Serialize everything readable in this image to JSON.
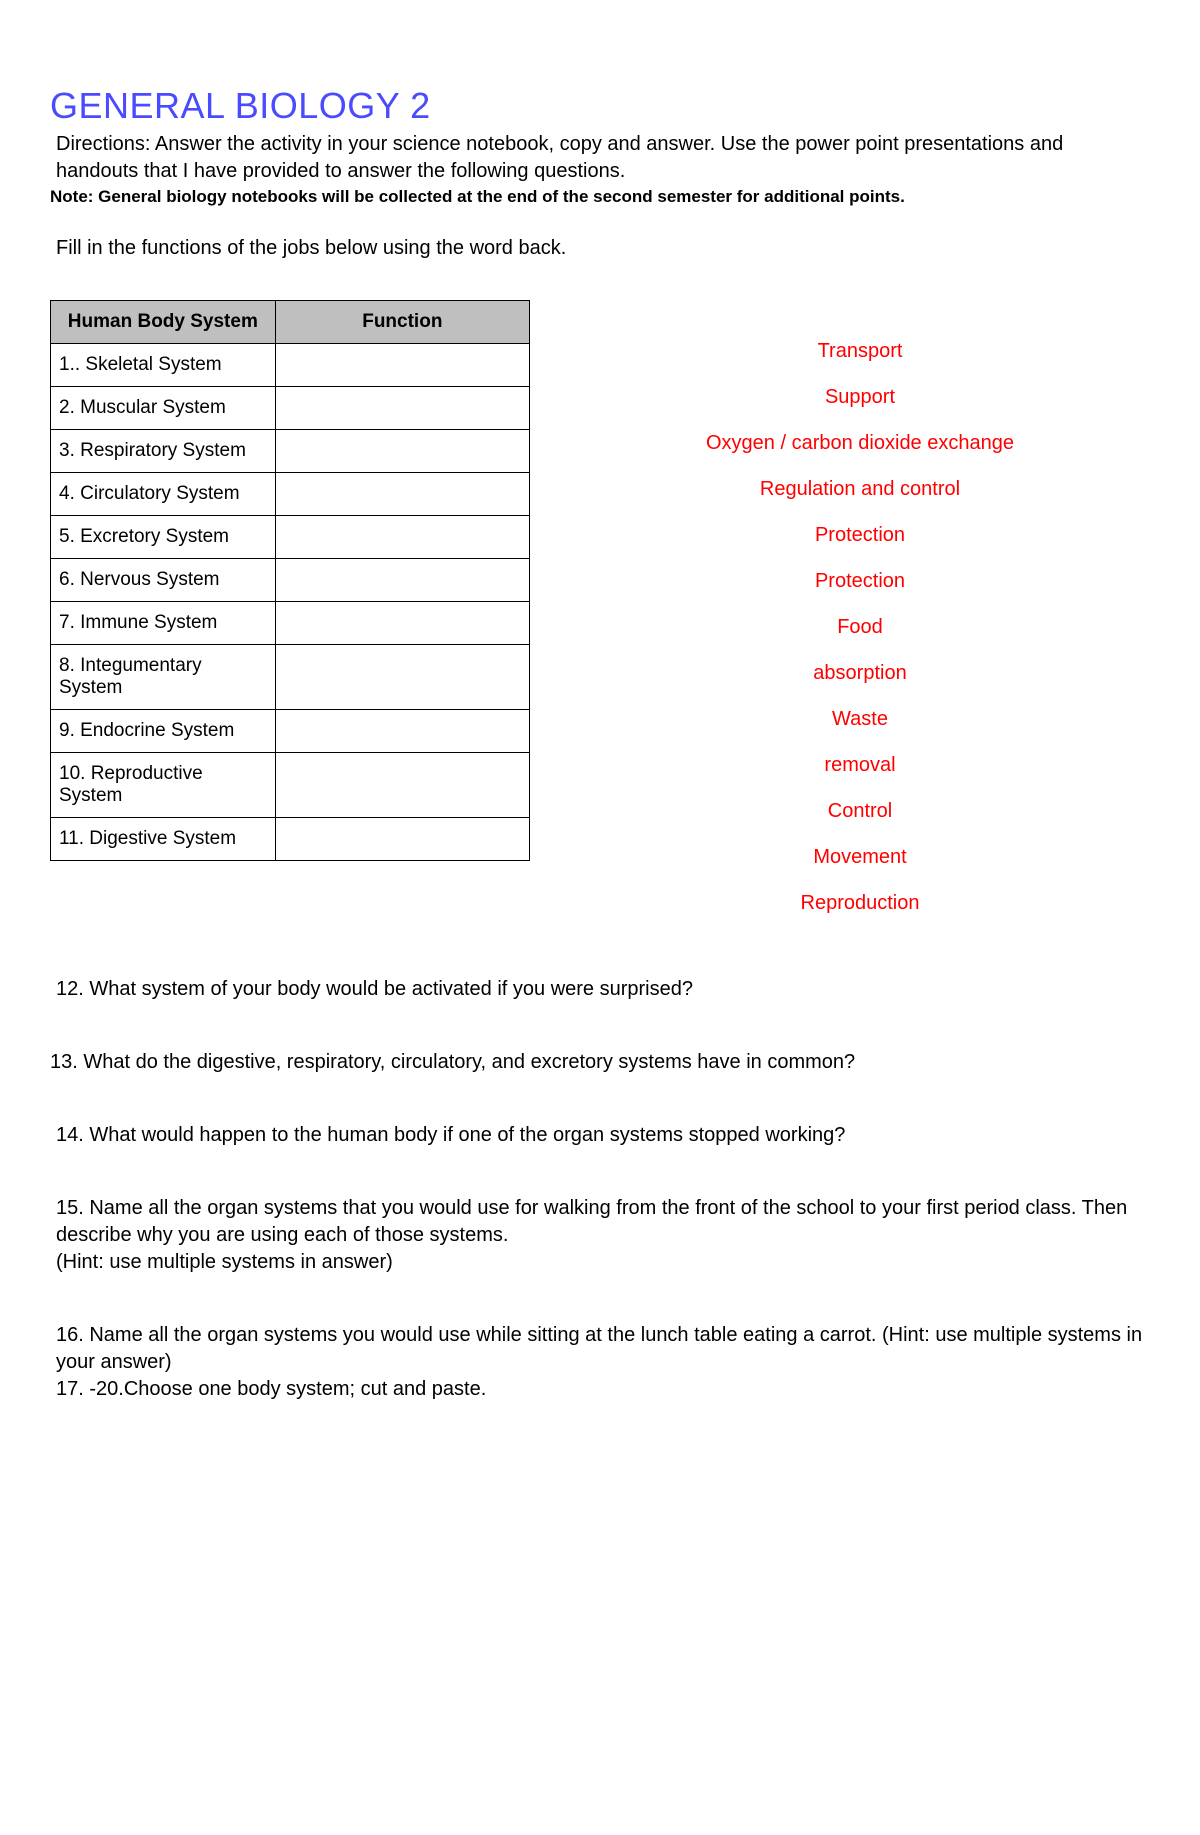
{
  "header": {
    "title": "GENERAL BIOLOGY 2",
    "directions": "Directions: Answer the activity in your science notebook, copy and answer. Use the power point presentations and handouts that I have provided to answer the following questions.",
    "note": "Note: General biology notebooks will be collected at the end of the second semester for additional points.",
    "instruction": "Fill in the functions of the jobs below using the word back."
  },
  "table": {
    "headers": {
      "system": "Human Body System",
      "function": "Function"
    },
    "rows": [
      {
        "system": "1.. Skeletal System",
        "function": ""
      },
      {
        "system": "2. Muscular System",
        "function": ""
      },
      {
        "system": "3. Respiratory System",
        "function": ""
      },
      {
        "system": "4. Circulatory System",
        "function": ""
      },
      {
        "system": "5. Excretory System",
        "function": ""
      },
      {
        "system": "6. Nervous System",
        "function": ""
      },
      {
        "system": "7. Immune System",
        "function": ""
      },
      {
        "system": "8. Integumentary System",
        "function": ""
      },
      {
        "system": "9. Endocrine System",
        "function": ""
      },
      {
        "system": "10. Reproductive System",
        "function": ""
      },
      {
        "system": "11. Digestive System",
        "function": ""
      }
    ]
  },
  "word_bank": [
    "Transport",
    "Support",
    "Oxygen / carbon dioxide exchange",
    "Regulation and control",
    "Protection",
    "Protection",
    "Food",
    "absorption",
    "Waste",
    "removal",
    "Control",
    "Movement",
    "Reproduction"
  ],
  "questions": {
    "q12": "12. What system of your body would be activated if you were surprised?",
    "q13": "13. What do the digestive, respiratory, circulatory, and excretory systems have in common?",
    "q14": "14. What would happen to the human body if one of the organ systems stopped working?",
    "q15": "15. Name all the organ systems that you would use for walking from the front of the school to your first period class. Then describe why you are using each of those systems.",
    "q15_hint": "(Hint: use multiple systems in answer)",
    "q16": "16. Name all the organ systems you would use while sitting at the lunch table eating a carrot. (Hint: use multiple systems in your answer)",
    "q17": "17. -20.Choose one body system; cut and paste."
  },
  "colors": {
    "title": "#4a4aff",
    "word_bank": "#ff0000",
    "header_bg": "#bfbfbf",
    "text": "#000000",
    "bg": "#ffffff"
  },
  "fonts": {
    "body": "Verdana",
    "title_size": 36,
    "body_size": 20,
    "note_size": 17
  }
}
